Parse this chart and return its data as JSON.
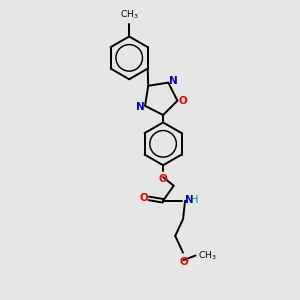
{
  "bg_color": "#e6e6e6",
  "bond_color": "#000000",
  "atom_colors": {
    "N": "#0000cc",
    "O": "#ee0000",
    "H": "#008888",
    "C": "#000000"
  },
  "figsize": [
    3.0,
    3.0
  ],
  "dpi": 100,
  "lw": 1.4,
  "r_hex": 0.72,
  "r_pent": 0.58
}
